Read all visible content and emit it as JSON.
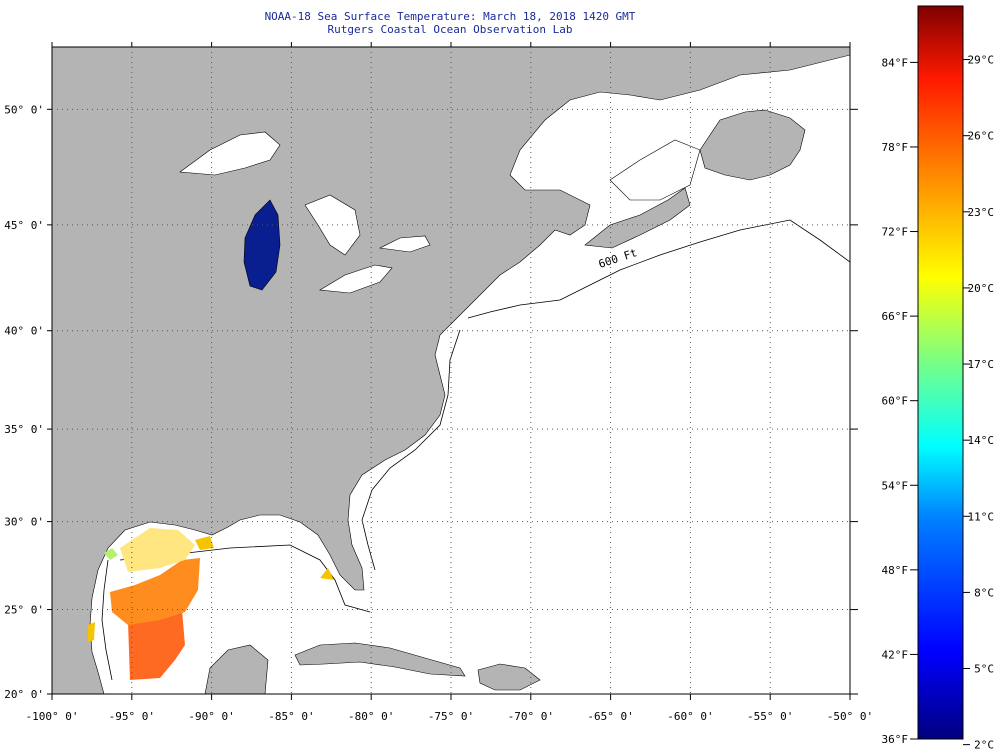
{
  "title": {
    "line1": "NOAA-18 Sea Surface Temperature:  March 18, 2018 1420 GMT",
    "line2": "Rutgers Coastal Ocean Observation Lab"
  },
  "map": {
    "lon_range": [
      -100,
      -50
    ],
    "lat_range": [
      20,
      52.5
    ],
    "lon_ticks": [
      "-100° 0'",
      "-95° 0'",
      "-90° 0'",
      "-85° 0'",
      "-80° 0'",
      "-75° 0'",
      "-70° 0'",
      "-65° 0'",
      "-60° 0'",
      "-55° 0'",
      "-50° 0'"
    ],
    "lat_ticks": [
      {
        "lat": 20,
        "label": "20° 0'"
      },
      {
        "lat": 25,
        "label": "25° 0'"
      },
      {
        "lat": 30,
        "label": "30° 0'"
      },
      {
        "lat": 35,
        "label": "35° 0'"
      },
      {
        "lat": 40,
        "label": "40° 0'"
      },
      {
        "lat": 45,
        "label": "45° 0'"
      },
      {
        "lat": 50,
        "label": "50° 0'"
      }
    ],
    "contour_label": "600 Ft",
    "land_color": "#b4b4b4",
    "no_data_color": "#ffffff"
  },
  "colorbar": {
    "min_f": 36,
    "max_f": 88,
    "f_labels": [
      "84°F",
      "78°F",
      "72°F",
      "66°F",
      "60°F",
      "54°F",
      "48°F",
      "42°F",
      "36°F"
    ],
    "c_labels": [
      "29°C",
      "26°C",
      "23°C",
      "20°C",
      "17°C",
      "14°C",
      "11°C",
      "8°C",
      "5°C",
      "2°C"
    ],
    "colors": [
      "#00007f",
      "#0000ff",
      "#007fff",
      "#00ffff",
      "#7fff7f",
      "#ffff00",
      "#ff7f00",
      "#ff0000",
      "#7f0000"
    ]
  }
}
